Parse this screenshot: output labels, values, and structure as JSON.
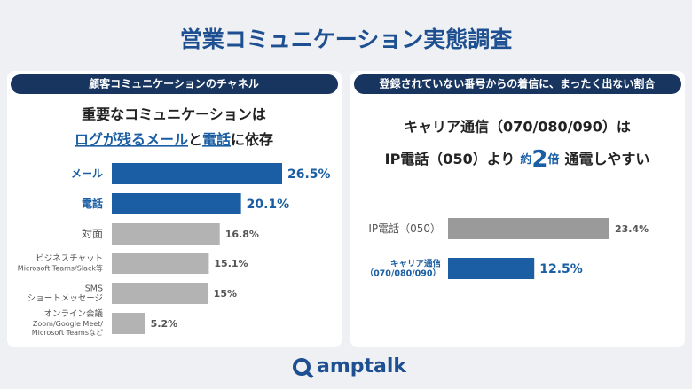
{
  "title": "営業コミュニケーション実態調査",
  "logo": "amptalk",
  "chart_data": [
    {
      "type": "bar",
      "orientation": "horizontal",
      "title": "顧客コミュニケーションのチャネル",
      "headline": [
        "重要なコミュニケーションは",
        [
          "ログが残るメール",
          "と",
          "電話",
          "に依存"
        ]
      ],
      "categories": [
        "メール",
        "電話",
        "対面",
        "ビジネスチャット",
        "SMS\nショートメッセージ",
        "オンライン会議"
      ],
      "category_notes": [
        null,
        null,
        null,
        "Microsoft Teams/Slack等",
        null,
        "Zoom/Google Meet/\nMicrosoft Teamsなど"
      ],
      "values": [
        26.5,
        20.1,
        16.8,
        15.1,
        15,
        5.2
      ],
      "value_labels": [
        "26.5%",
        "20.1%",
        "16.8%",
        "15.1%",
        "15%",
        "5.2%"
      ],
      "colors": [
        "#1b5ea3",
        "#1b5ea3",
        "#b3b3b3",
        "#b3b3b3",
        "#b3b3b3",
        "#b3b3b3"
      ]
    },
    {
      "type": "bar",
      "orientation": "horizontal",
      "title": "登録されていない番号からの着信に、まったく出ない割合",
      "headline": [
        "キャリア通信（070/080/090）は",
        [
          "IP電話（050）より",
          "約",
          "2",
          "倍",
          "通電しやすい"
        ]
      ],
      "categories": [
        "IP電話（050）",
        "キャリア通信\n（070/080/090）"
      ],
      "values": [
        23.4,
        12.5
      ],
      "value_labels": [
        "23.4%",
        "12.5%"
      ],
      "colors": [
        "#9a9a9a",
        "#1b5ea3"
      ]
    }
  ]
}
